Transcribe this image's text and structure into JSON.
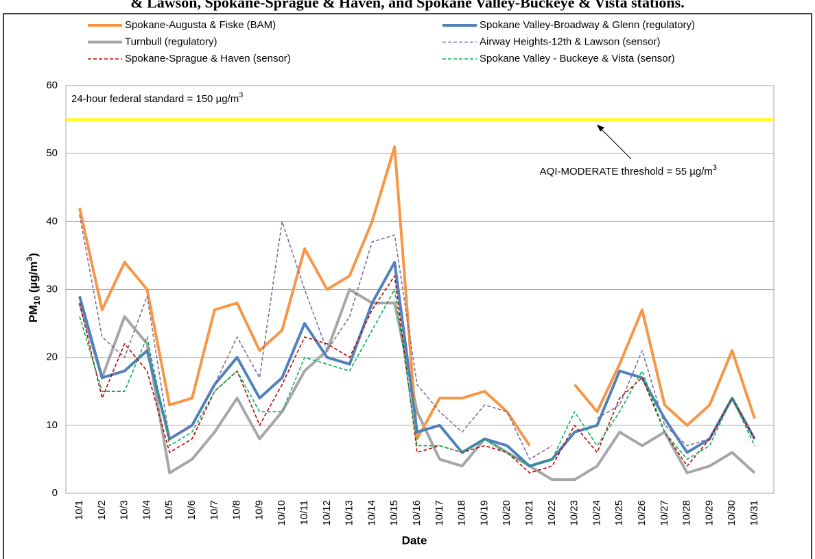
{
  "chart_data": {
    "type": "line",
    "title": "& Lawson, Spokane-Sprague & Haven, and Spokane Valley-Buckeye & Vista stations.",
    "x_label": "Date",
    "y_label": {
      "main": "PM",
      "sub": "10",
      "rest": " (µg/m",
      "sup": "3",
      "end": ")"
    },
    "categories": [
      "10/1",
      "10/2",
      "10/3",
      "10/4",
      "10/5",
      "10/6",
      "10/7",
      "10/8",
      "10/9",
      "10/10",
      "10/11",
      "10/12",
      "10/13",
      "10/14",
      "10/15",
      "10/16",
      "10/17",
      "10/18",
      "10/19",
      "10/20",
      "10/21",
      "10/22",
      "10/23",
      "10/24",
      "10/25",
      "10/26",
      "10/27",
      "10/28",
      "10/29",
      "10/30",
      "10/31"
    ],
    "ylim": [
      0,
      60
    ],
    "yticks": [
      0,
      10,
      20,
      30,
      40,
      50,
      60
    ],
    "grid": true,
    "threshold": {
      "value": 55,
      "color": "#ffff00"
    },
    "annotations": [
      {
        "text": "24-hour federal standard = 150 µg/m",
        "sup": "3"
      },
      {
        "text": "AQI-MODERATE threshold = 55 µg/m",
        "sup": "3"
      }
    ],
    "series": [
      {
        "name": "Spokane-Augusta & Fiske (BAM)",
        "color": "#f79646",
        "dash": false,
        "values": [
          42,
          27,
          34,
          30,
          13,
          14,
          27,
          28,
          21,
          24,
          36,
          30,
          32,
          40,
          51,
          8,
          14,
          14,
          15,
          12,
          7,
          null,
          16,
          12,
          19,
          27,
          13,
          10,
          13,
          21,
          11
        ]
      },
      {
        "name": "Spokane Valley-Broadway & Glenn (regulatory)",
        "color": "#4f81bd",
        "dash": false,
        "values": [
          29,
          17,
          18,
          21,
          8,
          10,
          16,
          20,
          14,
          17,
          25,
          20,
          19,
          28,
          34,
          9,
          10,
          6,
          8,
          7,
          4,
          5,
          9,
          10,
          18,
          17,
          11,
          6,
          8,
          14,
          8
        ]
      },
      {
        "name": "Turnbull (regulatory)",
        "color": "#a6a6a6",
        "dash": false,
        "values": [
          28,
          17,
          26,
          22,
          3,
          5,
          9,
          14,
          8,
          12,
          18,
          21,
          30,
          28,
          28,
          12,
          5,
          4,
          8,
          6,
          4,
          2,
          2,
          4,
          9,
          7,
          9,
          3,
          4,
          6,
          3
        ]
      },
      {
        "name": "Airway Heights-12th & Lawson (sensor)",
        "color": "#7f6a9e",
        "dash": true,
        "values": [
          41,
          23,
          20,
          29,
          8,
          10,
          16,
          23,
          17,
          40,
          30,
          21,
          26,
          37,
          38,
          16,
          12,
          9,
          13,
          12,
          5,
          7,
          null,
          11,
          13,
          21,
          10,
          7,
          8,
          14,
          8
        ]
      },
      {
        "name": "Spokane-Sprague & Haven (sensor)",
        "color": "#c00000",
        "dash": true,
        "values": [
          28,
          14,
          22,
          18,
          6,
          8,
          15,
          18,
          10,
          16,
          23,
          22,
          20,
          27,
          32,
          6,
          7,
          6,
          7,
          6,
          3,
          4,
          10,
          6,
          14,
          17,
          9,
          4,
          8,
          14,
          8
        ]
      },
      {
        "name": "Spokane Valley - Buckeye & Vista (sensor)",
        "color": "#00b050",
        "dash": true,
        "values": [
          26,
          15,
          15,
          23,
          7,
          9,
          15,
          18,
          12,
          12,
          20,
          19,
          18,
          24,
          30,
          7,
          7,
          6,
          8,
          6,
          4,
          5,
          12,
          7,
          12,
          18,
          9,
          5,
          7,
          14,
          7
        ]
      }
    ]
  }
}
